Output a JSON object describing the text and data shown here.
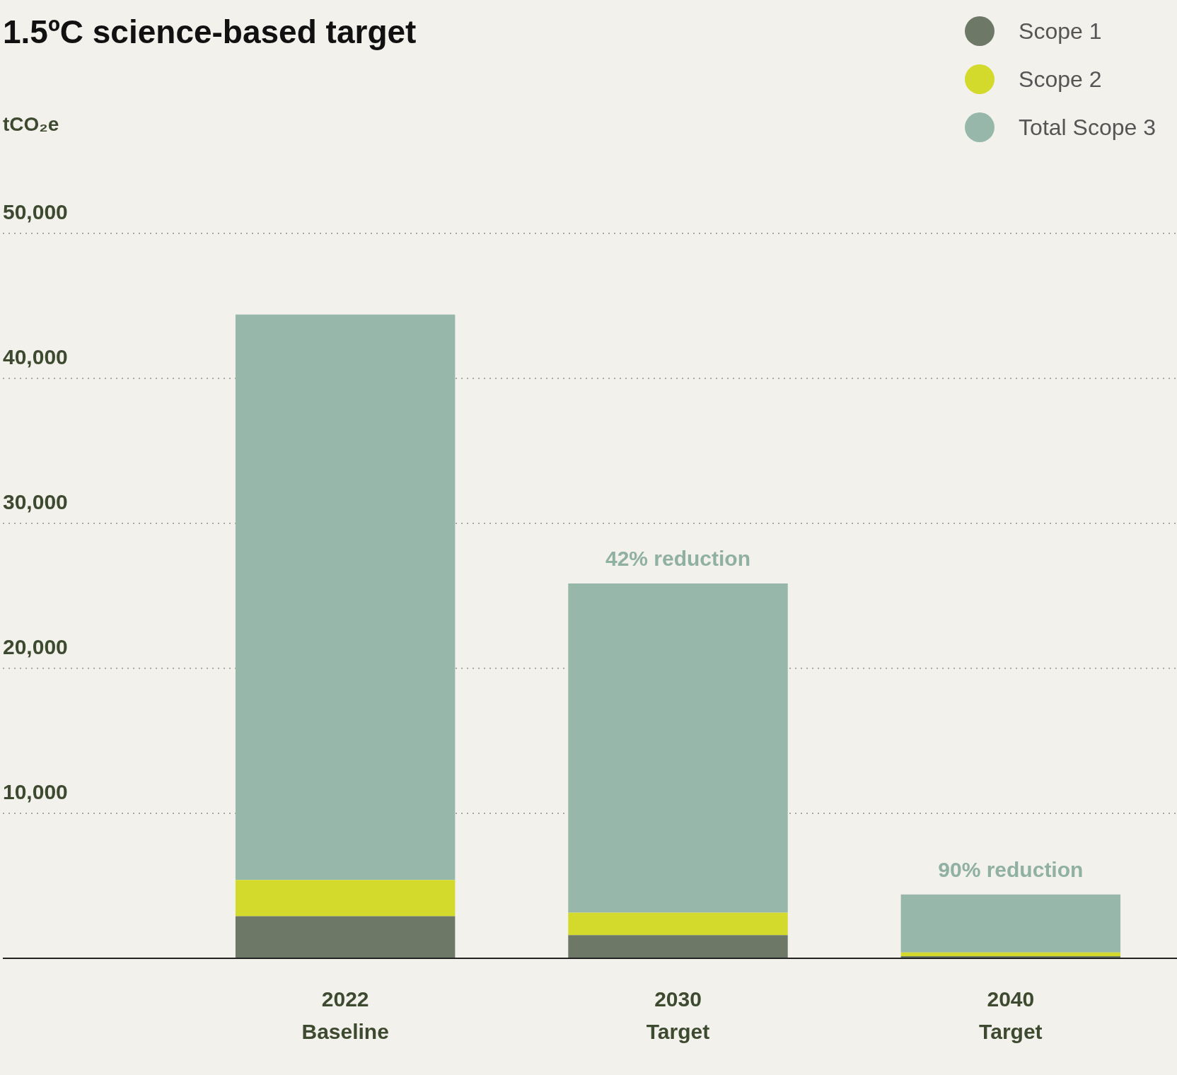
{
  "chart_data": {
    "type": "bar",
    "title": "1.5ºC science-based target",
    "ylabel": "tCO₂e",
    "categories": [
      "2022 Baseline",
      "2030 Target",
      "2040 Target"
    ],
    "series": [
      {
        "name": "Scope 1",
        "color": "#6d7866",
        "values": [
          2900,
          1600,
          150
        ]
      },
      {
        "name": "Scope 2",
        "color": "#d3da2b",
        "values": [
          2500,
          1550,
          250
        ]
      },
      {
        "name": "Total Scope 3",
        "color": "#96b7a9",
        "values": [
          39000,
          22700,
          4000
        ]
      }
    ],
    "stacked": true,
    "ylim": [
      0,
      50000
    ],
    "yticks": [
      {
        "value": 10000,
        "label": "10,000"
      },
      {
        "value": 20000,
        "label": "20,000"
      },
      {
        "value": 30000,
        "label": "30,000"
      },
      {
        "value": 40000,
        "label": "40,000"
      },
      {
        "value": 50000,
        "label": "50,000"
      }
    ],
    "grid": "y",
    "legend": "top right",
    "annotations": [
      {
        "text": "42% reduction",
        "x": "2030 Target",
        "y": 25850
      },
      {
        "text": "90% reduction",
        "x": "2040 Target",
        "y": 4400
      }
    ]
  }
}
